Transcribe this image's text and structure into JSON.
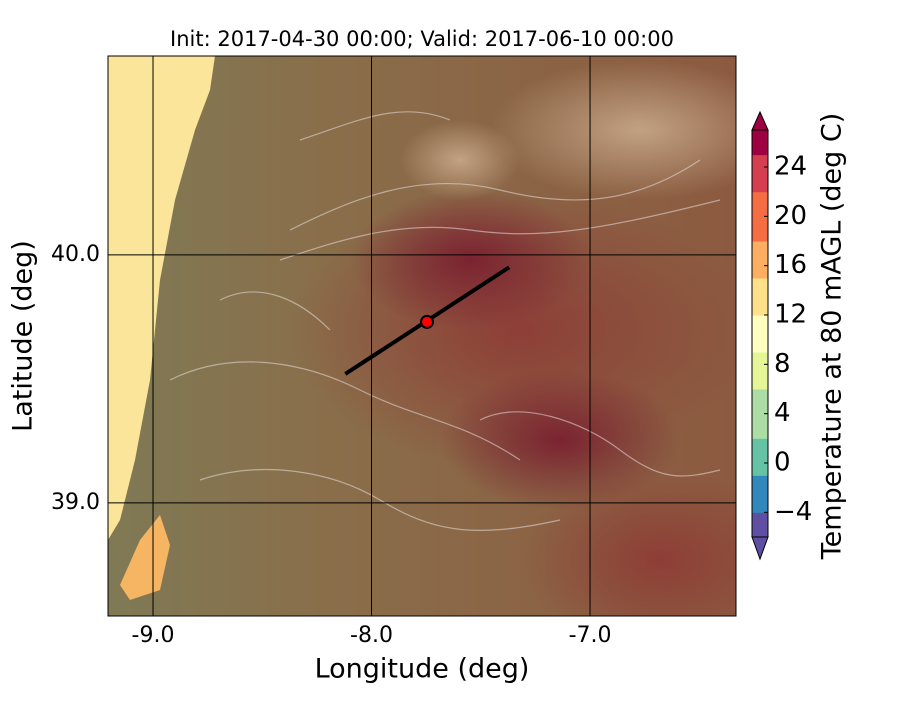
{
  "chart_data": {
    "type": "map",
    "title": "Init: 2017-04-30 00:00; Valid: 2017-06-10 00:00",
    "xlabel": "Longitude (deg)",
    "ylabel": "Latitude (deg)",
    "xlim": [
      -9.206,
      -6.332
    ],
    "ylim": [
      38.544,
      40.802
    ],
    "xticks": [
      {
        "value": -9,
        "label": "-9.0"
      },
      {
        "value": -8,
        "label": "-8.0"
      },
      {
        "value": -7,
        "label": "-7.0"
      }
    ],
    "yticks": [
      {
        "value": 39,
        "label": "39.0"
      },
      {
        "value": 40,
        "label": "40.0"
      }
    ],
    "grid": true,
    "colorbar": {
      "label": "Temperature at 80 mAGL (deg C)",
      "clim": [
        -6,
        27
      ],
      "ticks": [
        {
          "value": -4,
          "label": "−4"
        },
        0,
        4,
        8,
        12,
        16,
        20,
        24
      ]
    },
    "cross_section": {
      "lon": [
        -8.12,
        -7.37
      ],
      "lat": [
        39.52,
        39.95
      ],
      "color": "#000000"
    },
    "point": {
      "lon": -7.746,
      "lat": 39.73,
      "color": "#ff0000"
    }
  }
}
